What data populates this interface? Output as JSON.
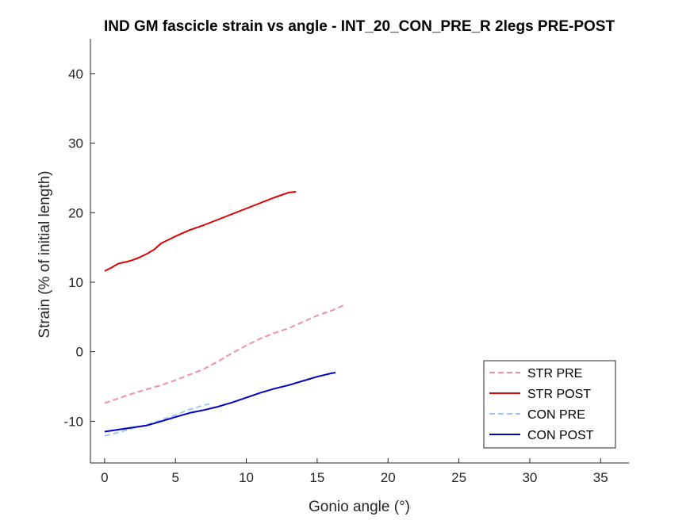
{
  "chart_data": {
    "type": "line",
    "title": "IND GM fascicle strain vs angle - INT_20_CON_PRE_R 2legs PRE-POST",
    "xlabel": "Gonio angle (°)",
    "ylabel": "Strain (% of initial length)",
    "xlim": [
      -1,
      37
    ],
    "ylim": [
      -16,
      45
    ],
    "xticks": [
      0,
      5,
      10,
      15,
      20,
      25,
      30,
      35
    ],
    "yticks": [
      -10,
      0,
      10,
      20,
      30,
      40
    ],
    "xtick_labels": [
      "0",
      "5",
      "10",
      "15",
      "20",
      "25",
      "30",
      "35"
    ],
    "ytick_labels": [
      "-10",
      "0",
      "10",
      "20",
      "30",
      "40"
    ],
    "grid": false,
    "legend_position": "bottom-right",
    "series": [
      {
        "name": "STR PRE",
        "color": "#f28db2",
        "style": "dashed",
        "x": [
          0,
          1,
          2,
          3,
          4,
          5,
          6,
          7,
          8,
          9,
          10,
          11,
          12,
          13,
          14,
          15,
          16,
          17
        ],
        "y": [
          -7.4,
          -6.7,
          -6.0,
          -5.4,
          -4.8,
          -4.1,
          -3.3,
          -2.5,
          -1.4,
          -0.2,
          0.9,
          1.9,
          2.7,
          3.4,
          4.3,
          5.2,
          5.9,
          6.8
        ]
      },
      {
        "name": "STR POST",
        "color": "#e00000",
        "style": "solid",
        "x": [
          0,
          0.5,
          1,
          1.5,
          2,
          2.5,
          3,
          3.5,
          4,
          5,
          6,
          7,
          8,
          9,
          10,
          11,
          12,
          13,
          13.5
        ],
        "y": [
          11.6,
          12.1,
          12.7,
          12.9,
          13.2,
          13.6,
          14.1,
          14.7,
          15.6,
          16.6,
          17.5,
          18.2,
          19.0,
          19.8,
          20.6,
          21.4,
          22.2,
          22.9,
          23.0
        ]
      },
      {
        "name": "CON PRE",
        "color": "#9ec8f5",
        "style": "dashed",
        "x": [
          0,
          1,
          2,
          3,
          4,
          5,
          6,
          7,
          7.4
        ],
        "y": [
          -12.1,
          -11.6,
          -11.0,
          -10.5,
          -9.8,
          -9.1,
          -8.3,
          -7.7,
          -7.5
        ]
      },
      {
        "name": "CON POST",
        "color": "#0000c8",
        "style": "solid",
        "x": [
          0,
          1,
          2,
          3,
          4,
          5,
          6,
          7,
          8,
          9,
          10,
          11,
          12,
          13,
          14,
          15,
          16,
          16.3
        ],
        "y": [
          -11.5,
          -11.2,
          -10.9,
          -10.6,
          -10.0,
          -9.4,
          -8.8,
          -8.4,
          -7.9,
          -7.3,
          -6.6,
          -5.9,
          -5.3,
          -4.8,
          -4.2,
          -3.6,
          -3.1,
          -3.0
        ]
      }
    ]
  }
}
